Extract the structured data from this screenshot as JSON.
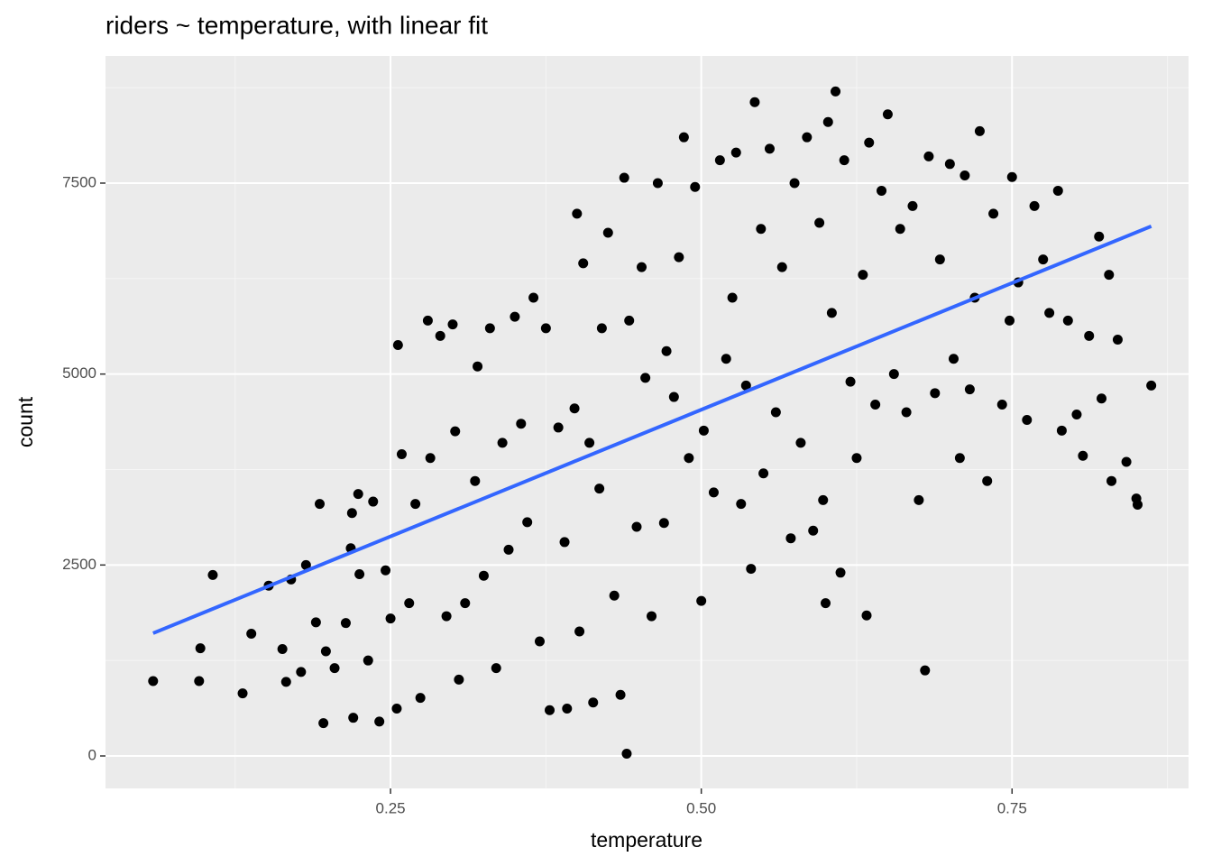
{
  "chart_data": {
    "type": "scatter",
    "title": "riders ~ temperature, with linear fit",
    "xlabel": "temperature",
    "ylabel": "count",
    "xlim": [
      0.0207,
      0.892
    ],
    "ylim": [
      -425,
      9165
    ],
    "xticks": [
      {
        "value": 0.25,
        "label": "0.25"
      },
      {
        "value": 0.5,
        "label": "0.50"
      },
      {
        "value": 0.75,
        "label": "0.75"
      }
    ],
    "yticks": [
      0,
      2500,
      5000,
      7500
    ],
    "xminor": [
      0.125,
      0.375,
      0.625,
      0.875
    ],
    "yminor": [
      1250,
      3750,
      6250,
      8750
    ],
    "grid": true,
    "color": "#000000",
    "fit": {
      "color": "#3366ff",
      "x": [
        0.059,
        0.862
      ],
      "y": [
        1607,
        6935
      ]
    },
    "x": [
      0.059,
      0.097,
      0.096,
      0.107,
      0.131,
      0.138,
      0.152,
      0.163,
      0.166,
      0.17,
      0.178,
      0.182,
      0.19,
      0.193,
      0.196,
      0.198,
      0.205,
      0.214,
      0.218,
      0.219,
      0.22,
      0.224,
      0.225,
      0.232,
      0.236,
      0.241,
      0.246,
      0.25,
      0.255,
      0.256,
      0.259,
      0.265,
      0.27,
      0.274,
      0.28,
      0.282,
      0.29,
      0.295,
      0.3,
      0.302,
      0.305,
      0.31,
      0.318,
      0.32,
      0.325,
      0.33,
      0.335,
      0.34,
      0.345,
      0.35,
      0.355,
      0.36,
      0.365,
      0.37,
      0.375,
      0.378,
      0.385,
      0.39,
      0.392,
      0.398,
      0.4,
      0.402,
      0.405,
      0.41,
      0.413,
      0.418,
      0.42,
      0.425,
      0.43,
      0.435,
      0.438,
      0.44,
      0.442,
      0.448,
      0.452,
      0.455,
      0.46,
      0.465,
      0.47,
      0.472,
      0.478,
      0.482,
      0.486,
      0.49,
      0.495,
      0.5,
      0.502,
      0.51,
      0.515,
      0.52,
      0.525,
      0.528,
      0.532,
      0.536,
      0.54,
      0.543,
      0.548,
      0.55,
      0.555,
      0.56,
      0.565,
      0.572,
      0.575,
      0.58,
      0.585,
      0.59,
      0.595,
      0.598,
      0.6,
      0.602,
      0.605,
      0.608,
      0.612,
      0.615,
      0.62,
      0.625,
      0.63,
      0.633,
      0.635,
      0.64,
      0.645,
      0.65,
      0.655,
      0.66,
      0.665,
      0.67,
      0.675,
      0.68,
      0.683,
      0.688,
      0.692,
      0.7,
      0.703,
      0.708,
      0.712,
      0.716,
      0.72,
      0.724,
      0.73,
      0.735,
      0.742,
      0.748,
      0.75,
      0.755,
      0.762,
      0.768,
      0.775,
      0.78,
      0.787,
      0.79,
      0.795,
      0.802,
      0.807,
      0.812,
      0.82,
      0.822,
      0.828,
      0.83,
      0.835,
      0.842,
      0.85,
      0.851,
      0.862
    ],
    "values": [
      980,
      1410,
      980,
      2370,
      820,
      1600,
      2230,
      1400,
      970,
      2310,
      1100,
      2500,
      1750,
      3300,
      430,
      1370,
      1150,
      1740,
      2720,
      3180,
      500,
      3430,
      2380,
      1250,
      3330,
      450,
      2430,
      1800,
      620,
      5380,
      3950,
      2000,
      3300,
      760,
      5700,
      3900,
      5500,
      1830,
      5650,
      4250,
      1000,
      2000,
      3600,
      5100,
      2360,
      5600,
      1150,
      4100,
      2700,
      5750,
      4350,
      3060,
      6000,
      1500,
      5600,
      600,
      4300,
      2800,
      620,
      4550,
      7100,
      1630,
      6450,
      4100,
      700,
      3500,
      5600,
      6850,
      2100,
      800,
      7570,
      30,
      5700,
      3000,
      6400,
      4950,
      1830,
      7500,
      3050,
      5300,
      4700,
      6530,
      8100,
      3900,
      7450,
      2030,
      4260,
      3450,
      7800,
      5200,
      6000,
      7900,
      3300,
      4850,
      2450,
      8560,
      6900,
      3700,
      7950,
      4500,
      6400,
      2850,
      7500,
      4100,
      8100,
      2950,
      6980,
      3350,
      2000,
      8300,
      5800,
      8700,
      2400,
      7800,
      4900,
      3900,
      6300,
      1840,
      8030,
      4600,
      7400,
      8400,
      5000,
      6900,
      4500,
      7200,
      3350,
      1120,
      7850,
      4750,
      6500,
      7750,
      5200,
      3900,
      7600,
      4800,
      6000,
      8180,
      3600,
      7100,
      4600,
      5700,
      7580,
      6200,
      4400,
      7200,
      6500,
      5800,
      7400,
      4260,
      5700,
      4470,
      3930,
      5500,
      6800,
      4680,
      6300,
      3600,
      5450,
      3850,
      3370,
      3290,
      4850
    ]
  }
}
